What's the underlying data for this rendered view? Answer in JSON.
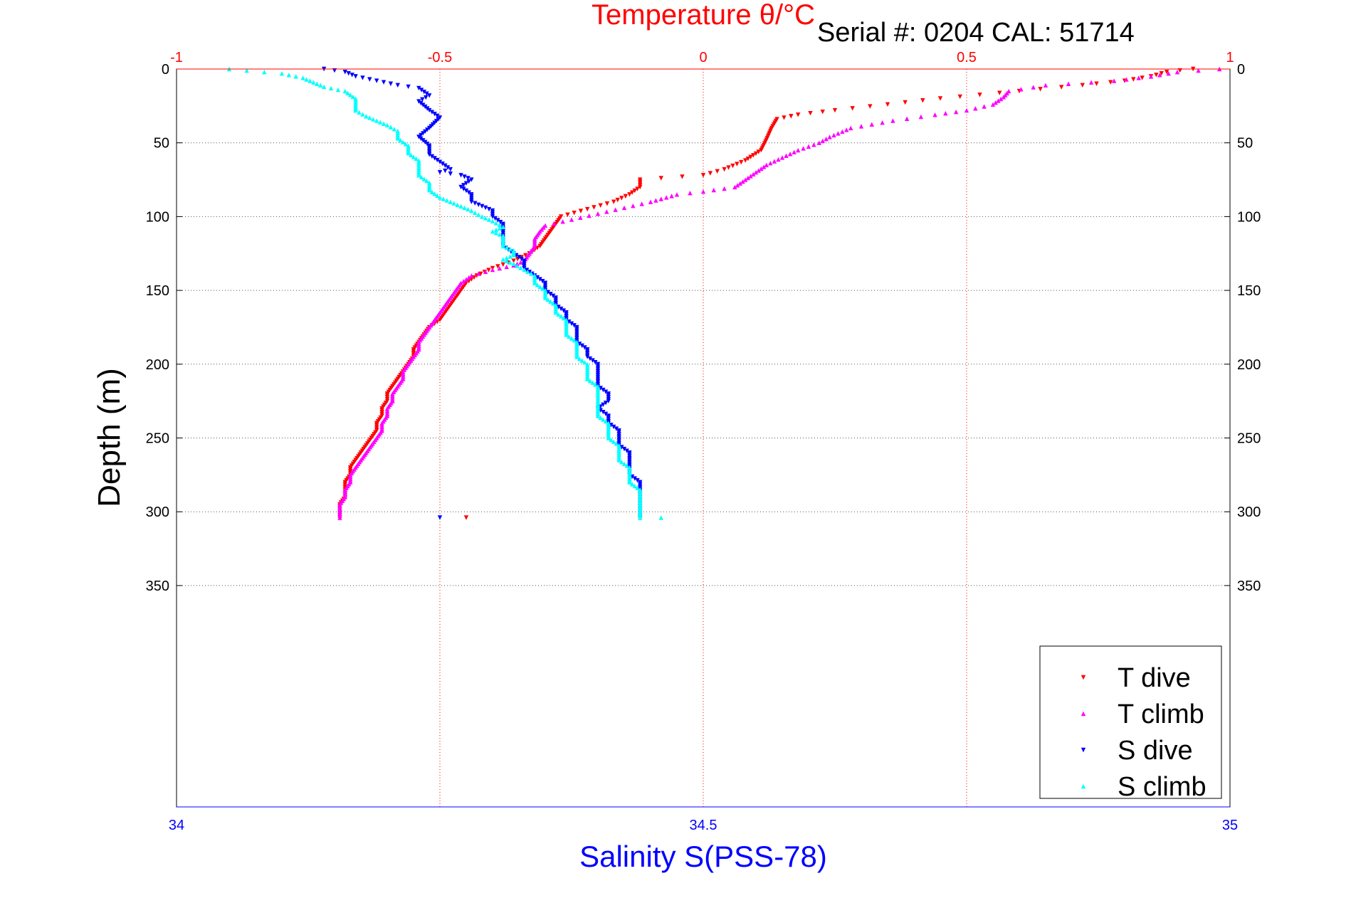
{
  "header": {
    "serial_text": "Serial #: 0204  CAL: 51714"
  },
  "chart_data": {
    "type": "scatter",
    "title": "Temperature θ/°C",
    "ylabel": "Depth (m)",
    "xlabel_bottom": "Salinity S(PSS-78)",
    "xlabel_top": "Temperature θ/°C",
    "ylim": [
      0,
      350
    ],
    "y_reversed": true,
    "y_axis_max": 500,
    "y_ticks": [
      "0",
      "50",
      "100",
      "150",
      "200",
      "250",
      "300",
      "350"
    ],
    "y_tick_values": [
      0,
      50,
      100,
      150,
      200,
      250,
      300,
      350
    ],
    "x_bottom": {
      "range": [
        34,
        35
      ],
      "ticks": [
        "34",
        "34.5",
        "35"
      ],
      "tick_values": [
        34,
        34.5,
        35
      ],
      "color": "#0000ff"
    },
    "x_top": {
      "range": [
        -1,
        1
      ],
      "ticks": [
        "-1",
        "-0.5",
        "0",
        "0.5",
        "1"
      ],
      "tick_values": [
        -1,
        -0.5,
        0,
        0.5,
        1
      ],
      "color": "#ff0000"
    },
    "grid": true,
    "legend_position": "bottom-right",
    "series": [
      {
        "name": "T dive",
        "axis": "top",
        "color": "#ff0000",
        "marker": "triangle-down",
        "points": [
          [
            0.93,
            0
          ],
          [
            0.88,
            2
          ],
          [
            0.85,
            5
          ],
          [
            0.8,
            8
          ],
          [
            0.72,
            11
          ],
          [
            0.6,
            15
          ],
          [
            0.45,
            20
          ],
          [
            0.35,
            24
          ],
          [
            0.25,
            28
          ],
          [
            0.18,
            31
          ],
          [
            0.14,
            34
          ],
          [
            0.13,
            40
          ],
          [
            0.12,
            48
          ],
          [
            0.11,
            55
          ],
          [
            0.08,
            62
          ],
          [
            0.04,
            68
          ],
          [
            0.0,
            72
          ],
          [
            -0.12,
            75
          ],
          [
            -0.12,
            80
          ],
          [
            -0.14,
            85
          ],
          [
            -0.17,
            90
          ],
          [
            -0.22,
            95
          ],
          [
            -0.27,
            100
          ],
          [
            -0.28,
            105
          ],
          [
            -0.29,
            110
          ],
          [
            -0.3,
            115
          ],
          [
            -0.31,
            120
          ],
          [
            -0.33,
            125
          ],
          [
            -0.36,
            130
          ],
          [
            -0.4,
            135
          ],
          [
            -0.43,
            140
          ],
          [
            -0.45,
            145
          ],
          [
            -0.46,
            150
          ],
          [
            -0.47,
            155
          ],
          [
            -0.48,
            160
          ],
          [
            -0.49,
            165
          ],
          [
            -0.5,
            170
          ],
          [
            -0.52,
            175
          ],
          [
            -0.53,
            180
          ],
          [
            -0.54,
            185
          ],
          [
            -0.55,
            190
          ],
          [
            -0.55,
            195
          ],
          [
            -0.56,
            200
          ],
          [
            -0.57,
            205
          ],
          [
            -0.58,
            210
          ],
          [
            -0.59,
            215
          ],
          [
            -0.6,
            220
          ],
          [
            -0.6,
            225
          ],
          [
            -0.61,
            230
          ],
          [
            -0.61,
            235
          ],
          [
            -0.62,
            240
          ],
          [
            -0.62,
            245
          ],
          [
            -0.63,
            250
          ],
          [
            -0.64,
            255
          ],
          [
            -0.65,
            260
          ],
          [
            -0.66,
            265
          ],
          [
            -0.67,
            270
          ],
          [
            -0.67,
            275
          ],
          [
            -0.68,
            280
          ],
          [
            -0.68,
            285
          ],
          [
            -0.68,
            290
          ],
          [
            -0.69,
            295
          ],
          [
            -0.69,
            300
          ],
          [
            -0.69,
            304
          ],
          [
            -0.45,
            304
          ]
        ]
      },
      {
        "name": "T climb",
        "axis": "top",
        "color": "#ff00ff",
        "marker": "triangle-up",
        "points": [
          [
            0.98,
            0
          ],
          [
            0.9,
            2
          ],
          [
            0.85,
            5
          ],
          [
            0.78,
            8
          ],
          [
            0.65,
            11
          ],
          [
            0.58,
            15
          ],
          [
            0.57,
            19
          ],
          [
            0.55,
            24
          ],
          [
            0.5,
            28
          ],
          [
            0.44,
            31
          ],
          [
            0.36,
            35
          ],
          [
            0.28,
            40
          ],
          [
            0.24,
            46
          ],
          [
            0.22,
            50
          ],
          [
            0.18,
            55
          ],
          [
            0.15,
            60
          ],
          [
            0.12,
            65
          ],
          [
            0.1,
            70
          ],
          [
            0.08,
            75
          ],
          [
            0.06,
            80
          ],
          [
            0.0,
            83
          ],
          [
            -0.05,
            85
          ],
          [
            -0.08,
            88
          ],
          [
            -0.1,
            90
          ],
          [
            -0.15,
            94
          ],
          [
            -0.2,
            98
          ],
          [
            -0.25,
            102
          ],
          [
            -0.3,
            106
          ],
          [
            -0.31,
            110
          ],
          [
            -0.32,
            115
          ],
          [
            -0.32,
            120
          ],
          [
            -0.33,
            125
          ],
          [
            -0.34,
            130
          ],
          [
            -0.36,
            133
          ],
          [
            -0.4,
            136
          ],
          [
            -0.44,
            140
          ],
          [
            -0.46,
            145
          ],
          [
            -0.47,
            150
          ],
          [
            -0.48,
            155
          ],
          [
            -0.49,
            160
          ],
          [
            -0.5,
            165
          ],
          [
            -0.51,
            170
          ],
          [
            -0.52,
            175
          ],
          [
            -0.53,
            180
          ],
          [
            -0.54,
            185
          ],
          [
            -0.54,
            190
          ],
          [
            -0.55,
            195
          ],
          [
            -0.56,
            200
          ],
          [
            -0.57,
            205
          ],
          [
            -0.57,
            210
          ],
          [
            -0.58,
            215
          ],
          [
            -0.59,
            220
          ],
          [
            -0.59,
            225
          ],
          [
            -0.6,
            230
          ],
          [
            -0.6,
            235
          ],
          [
            -0.61,
            240
          ],
          [
            -0.61,
            245
          ],
          [
            -0.62,
            250
          ],
          [
            -0.63,
            255
          ],
          [
            -0.64,
            260
          ],
          [
            -0.65,
            265
          ],
          [
            -0.66,
            270
          ],
          [
            -0.67,
            275
          ],
          [
            -0.67,
            280
          ],
          [
            -0.68,
            285
          ],
          [
            -0.68,
            290
          ],
          [
            -0.69,
            295
          ],
          [
            -0.69,
            300
          ],
          [
            -0.69,
            304
          ]
        ]
      },
      {
        "name": "S dive",
        "axis": "bottom",
        "color": "#0000ff",
        "marker": "triangle-down",
        "points": [
          [
            34.14,
            0
          ],
          [
            34.16,
            2
          ],
          [
            34.17,
            5
          ],
          [
            34.19,
            8
          ],
          [
            34.21,
            11
          ],
          [
            34.23,
            13
          ],
          [
            34.24,
            18
          ],
          [
            34.23,
            22
          ],
          [
            34.24,
            28
          ],
          [
            34.25,
            33
          ],
          [
            34.24,
            40
          ],
          [
            34.23,
            46
          ],
          [
            34.24,
            52
          ],
          [
            34.24,
            58
          ],
          [
            34.25,
            63
          ],
          [
            34.26,
            68
          ],
          [
            34.25,
            70
          ],
          [
            34.27,
            72
          ],
          [
            34.28,
            75
          ],
          [
            34.27,
            80
          ],
          [
            34.28,
            85
          ],
          [
            34.28,
            90
          ],
          [
            34.29,
            93
          ],
          [
            34.3,
            96
          ],
          [
            34.3,
            100
          ],
          [
            34.31,
            105
          ],
          [
            34.31,
            110
          ],
          [
            34.31,
            115
          ],
          [
            34.31,
            120
          ],
          [
            34.32,
            125
          ],
          [
            34.33,
            130
          ],
          [
            34.33,
            135
          ],
          [
            34.34,
            140
          ],
          [
            34.35,
            145
          ],
          [
            34.35,
            150
          ],
          [
            34.36,
            155
          ],
          [
            34.36,
            160
          ],
          [
            34.37,
            165
          ],
          [
            34.37,
            170
          ],
          [
            34.38,
            175
          ],
          [
            34.38,
            180
          ],
          [
            34.38,
            185
          ],
          [
            34.39,
            190
          ],
          [
            34.39,
            195
          ],
          [
            34.4,
            200
          ],
          [
            34.4,
            205
          ],
          [
            34.4,
            210
          ],
          [
            34.4,
            215
          ],
          [
            34.41,
            220
          ],
          [
            34.41,
            225
          ],
          [
            34.4,
            230
          ],
          [
            34.41,
            235
          ],
          [
            34.41,
            240
          ],
          [
            34.42,
            245
          ],
          [
            34.42,
            250
          ],
          [
            34.42,
            255
          ],
          [
            34.43,
            260
          ],
          [
            34.43,
            265
          ],
          [
            34.43,
            270
          ],
          [
            34.43,
            275
          ],
          [
            34.44,
            280
          ],
          [
            34.44,
            285
          ],
          [
            34.44,
            290
          ],
          [
            34.44,
            295
          ],
          [
            34.44,
            300
          ],
          [
            34.44,
            304
          ],
          [
            34.25,
            304
          ]
        ]
      },
      {
        "name": "S climb",
        "axis": "bottom",
        "color": "#00ffff",
        "marker": "triangle-up",
        "points": [
          [
            34.05,
            0
          ],
          [
            34.1,
            3
          ],
          [
            34.12,
            6
          ],
          [
            34.13,
            9
          ],
          [
            34.14,
            12
          ],
          [
            34.16,
            15
          ],
          [
            34.17,
            20
          ],
          [
            34.17,
            25
          ],
          [
            34.17,
            28
          ],
          [
            34.18,
            32
          ],
          [
            34.19,
            35
          ],
          [
            34.2,
            38
          ],
          [
            34.21,
            42
          ],
          [
            34.21,
            47
          ],
          [
            34.22,
            52
          ],
          [
            34.22,
            57
          ],
          [
            34.23,
            62
          ],
          [
            34.23,
            67
          ],
          [
            34.23,
            72
          ],
          [
            34.24,
            77
          ],
          [
            34.24,
            82
          ],
          [
            34.25,
            87
          ],
          [
            34.26,
            90
          ],
          [
            34.27,
            93
          ],
          [
            34.28,
            96
          ],
          [
            34.29,
            100
          ],
          [
            34.3,
            103
          ],
          [
            34.31,
            107
          ],
          [
            34.3,
            110
          ],
          [
            34.31,
            113
          ],
          [
            34.31,
            116
          ],
          [
            34.31,
            120
          ],
          [
            34.32,
            123
          ],
          [
            34.32,
            126
          ],
          [
            34.31,
            129
          ],
          [
            34.32,
            132
          ],
          [
            34.33,
            136
          ],
          [
            34.34,
            140
          ],
          [
            34.34,
            145
          ],
          [
            34.35,
            150
          ],
          [
            34.35,
            155
          ],
          [
            34.36,
            160
          ],
          [
            34.36,
            165
          ],
          [
            34.37,
            170
          ],
          [
            34.37,
            175
          ],
          [
            34.37,
            180
          ],
          [
            34.38,
            185
          ],
          [
            34.38,
            190
          ],
          [
            34.38,
            195
          ],
          [
            34.39,
            200
          ],
          [
            34.39,
            205
          ],
          [
            34.39,
            210
          ],
          [
            34.4,
            215
          ],
          [
            34.4,
            220
          ],
          [
            34.4,
            225
          ],
          [
            34.4,
            230
          ],
          [
            34.4,
            235
          ],
          [
            34.41,
            240
          ],
          [
            34.41,
            245
          ],
          [
            34.41,
            250
          ],
          [
            34.42,
            255
          ],
          [
            34.42,
            260
          ],
          [
            34.42,
            265
          ],
          [
            34.43,
            270
          ],
          [
            34.43,
            275
          ],
          [
            34.43,
            280
          ],
          [
            34.44,
            285
          ],
          [
            34.44,
            290
          ],
          [
            34.44,
            295
          ],
          [
            34.44,
            300
          ],
          [
            34.44,
            304
          ],
          [
            34.46,
            304
          ]
        ]
      }
    ]
  }
}
